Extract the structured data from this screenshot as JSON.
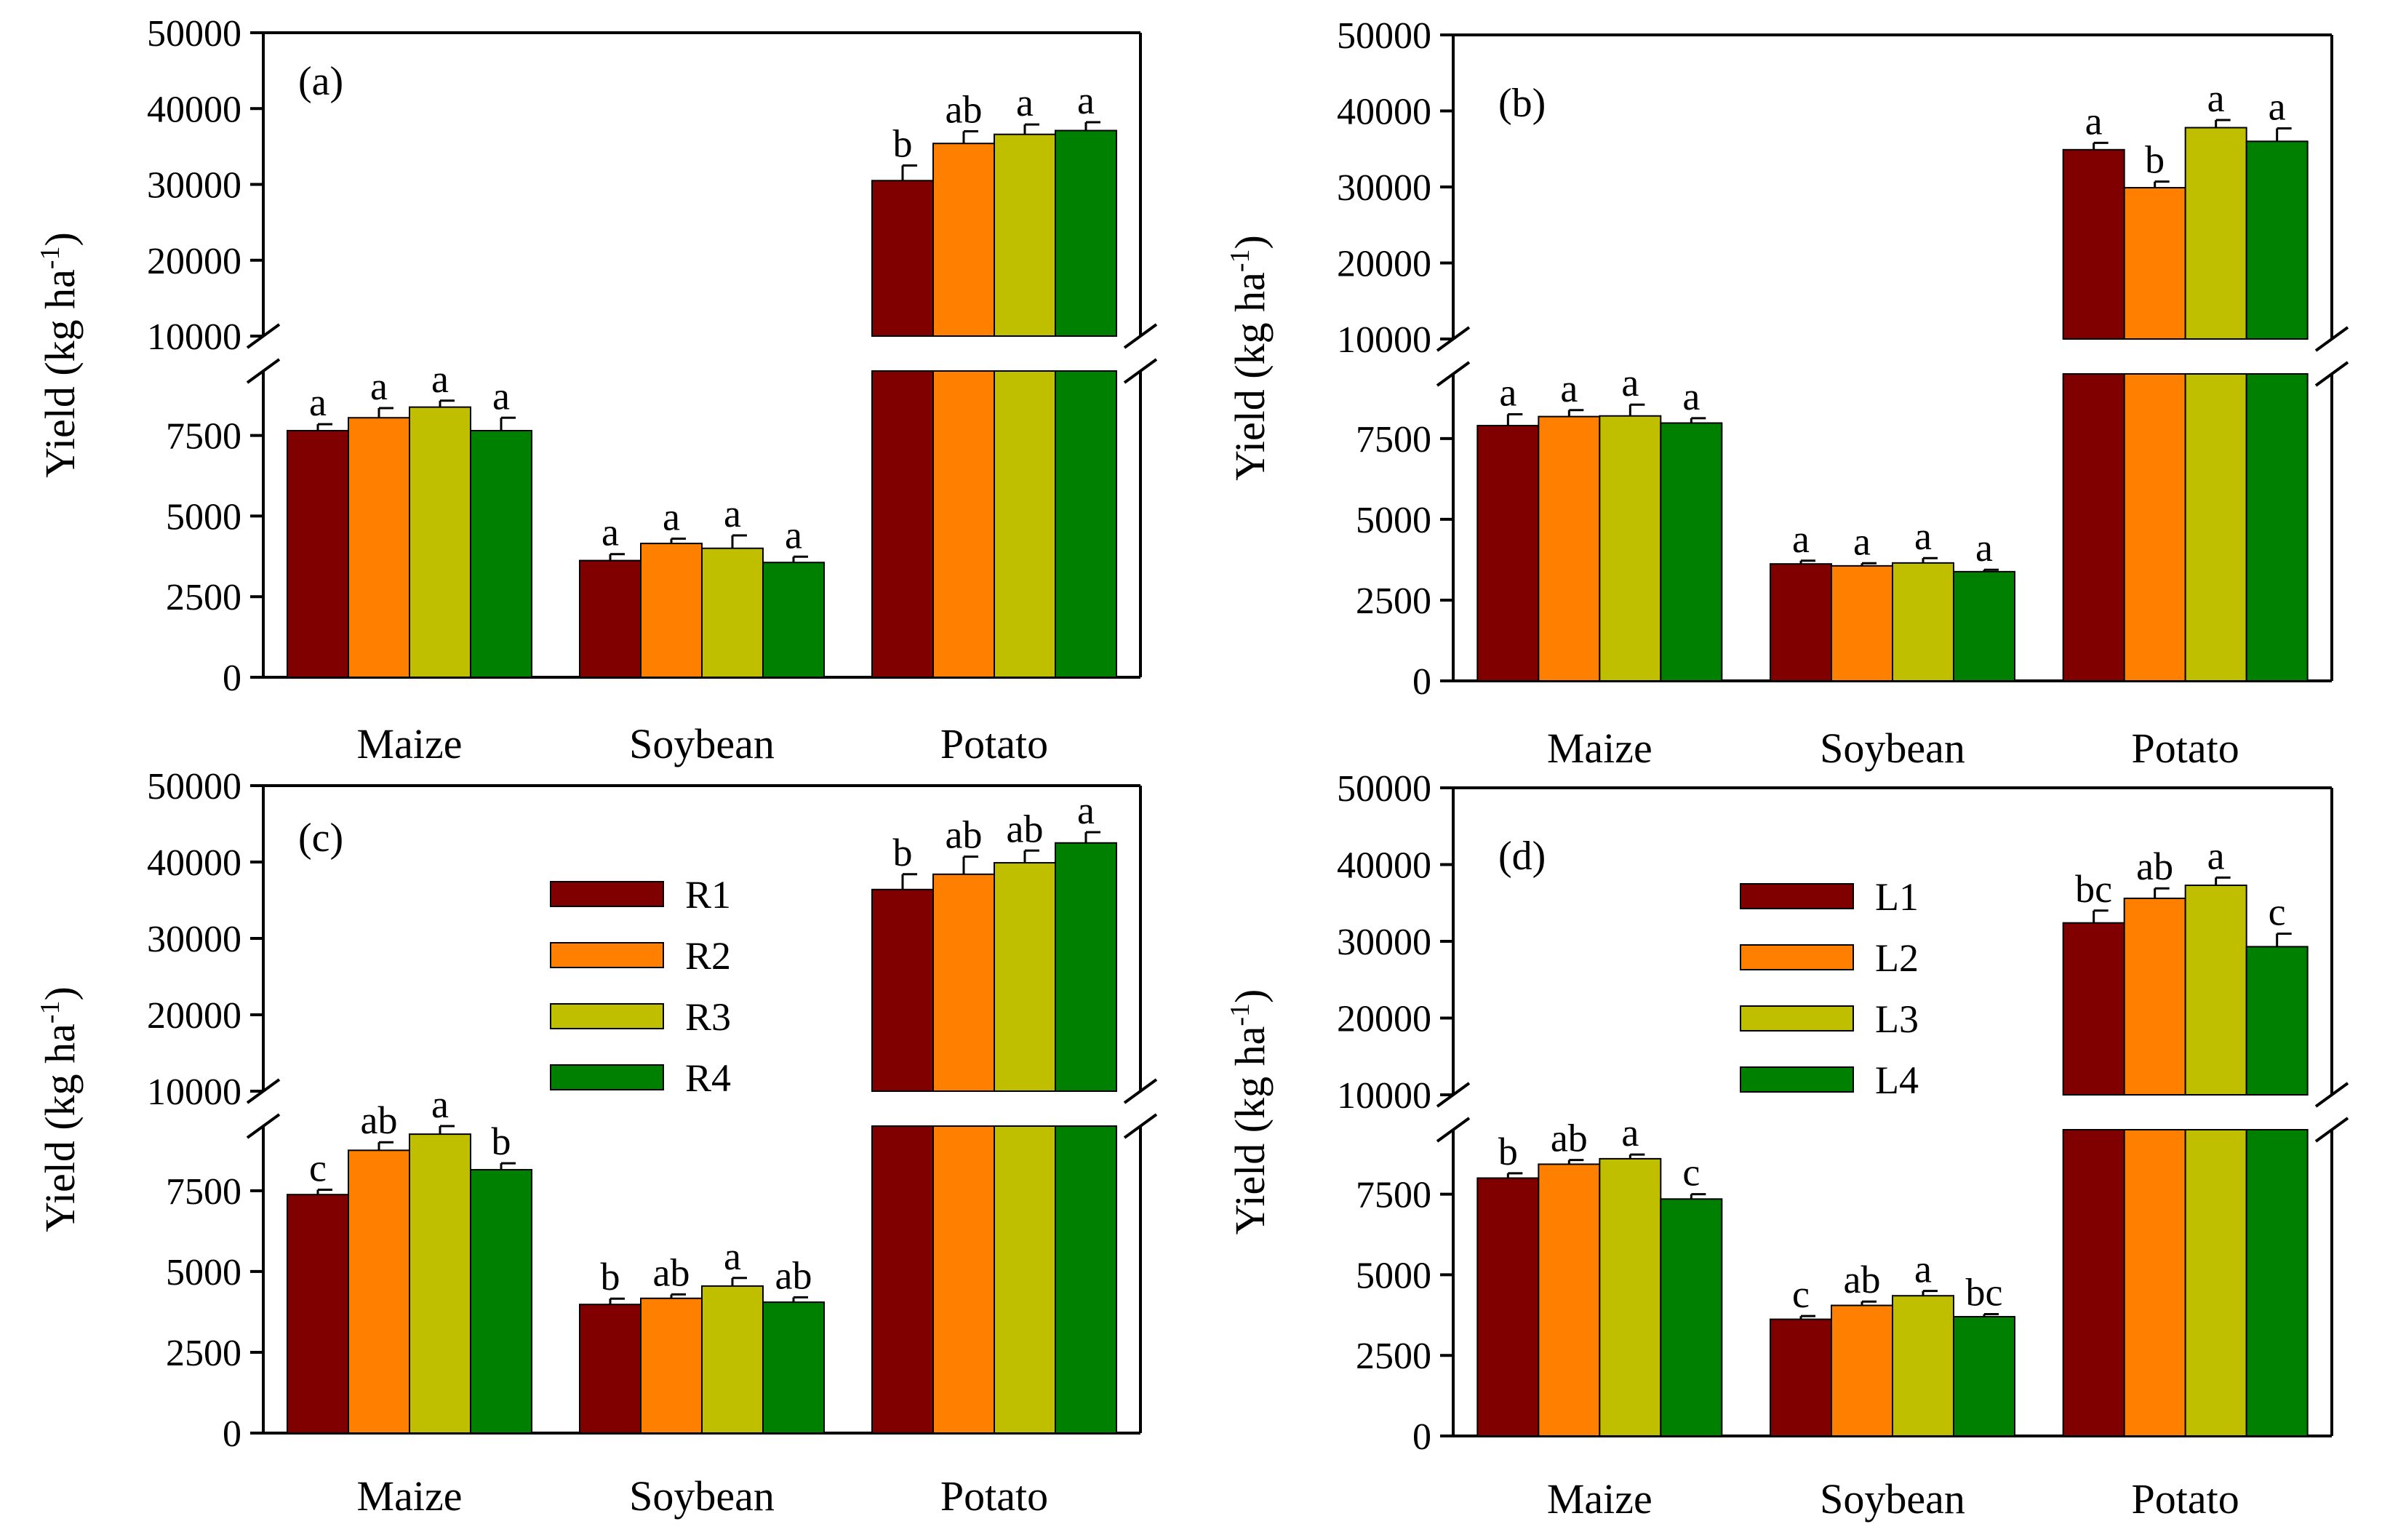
{
  "colors": {
    "series": [
      "#800000",
      "#FF8000",
      "#BFBF00",
      "#008000"
    ],
    "axis": "#000000",
    "background": "#FFFFFF"
  },
  "chart_data": [
    {
      "type": "bar",
      "panel_label": "(a)",
      "categories": [
        "Maize",
        "Soybean",
        "Potato"
      ],
      "ylabel": "Yield (kg ha",
      "ylabel_sup": "-1",
      "ylabel_end": ")",
      "axis_break": [
        9500,
        10000
      ],
      "lower_ylim": [
        0,
        9500
      ],
      "upper_ylim": [
        10000,
        50000
      ],
      "lower_ticks": [
        0,
        2500,
        5000,
        7500
      ],
      "upper_ticks": [
        10000,
        20000,
        30000,
        40000,
        50000
      ],
      "legend": null,
      "series": [
        {
          "values": [
            7650,
            3620,
            30500
          ],
          "errors": [
            200,
            200,
            2000
          ],
          "letters": [
            "a",
            "a",
            "b"
          ]
        },
        {
          "values": [
            8050,
            4150,
            35400
          ],
          "errors": [
            300,
            150,
            1600
          ],
          "letters": [
            "a",
            "a",
            "ab"
          ]
        },
        {
          "values": [
            8380,
            4000,
            36600
          ],
          "errors": [
            200,
            400,
            1300
          ],
          "letters": [
            "a",
            "a",
            "a"
          ]
        },
        {
          "values": [
            7650,
            3560,
            37100
          ],
          "errors": [
            400,
            180,
            1100
          ],
          "letters": [
            "a",
            "a",
            "a"
          ]
        }
      ]
    },
    {
      "type": "bar",
      "panel_label": "(b)",
      "categories": [
        "Maize",
        "Soybean",
        "Potato"
      ],
      "ylabel": "Yield (kg ha",
      "ylabel_sup": "-1",
      "ylabel_end": ")",
      "axis_break": [
        9500,
        10000
      ],
      "lower_ylim": [
        0,
        9500
      ],
      "upper_ylim": [
        10000,
        50000
      ],
      "lower_ticks": [
        0,
        2500,
        5000,
        7500
      ],
      "upper_ticks": [
        10000,
        20000,
        30000,
        40000,
        50000
      ],
      "legend": null,
      "series": [
        {
          "values": [
            7900,
            3620,
            34900
          ],
          "errors": [
            350,
            100,
            900
          ],
          "letters": [
            "a",
            "a",
            "a"
          ]
        },
        {
          "values": [
            8180,
            3560,
            29900
          ],
          "errors": [
            200,
            80,
            800
          ],
          "letters": [
            "a",
            "a",
            "b"
          ]
        },
        {
          "values": [
            8200,
            3650,
            37800
          ],
          "errors": [
            350,
            150,
            1000
          ],
          "letters": [
            "a",
            "a",
            "a"
          ]
        },
        {
          "values": [
            7980,
            3380,
            36000
          ],
          "errors": [
            150,
            60,
            1700
          ],
          "letters": [
            "a",
            "a",
            "a"
          ]
        }
      ]
    },
    {
      "type": "bar",
      "panel_label": "(c)",
      "categories": [
        "Maize",
        "Soybean",
        "Potato"
      ],
      "ylabel": "Yield (kg ha",
      "ylabel_sup": "-1",
      "ylabel_end": ")",
      "axis_break": [
        9500,
        10000
      ],
      "lower_ylim": [
        0,
        9500
      ],
      "upper_ylim": [
        10000,
        50000
      ],
      "lower_ticks": [
        0,
        2500,
        5000,
        7500
      ],
      "upper_ticks": [
        10000,
        20000,
        30000,
        40000,
        50000
      ],
      "legend": [
        "R1",
        "R2",
        "R3",
        "R4"
      ],
      "series": [
        {
          "values": [
            7380,
            3980,
            36400
          ],
          "errors": [
            150,
            180,
            2000
          ],
          "letters": [
            "c",
            "b",
            "b"
          ]
        },
        {
          "values": [
            8750,
            4170,
            38400
          ],
          "errors": [
            250,
            120,
            2300
          ],
          "letters": [
            "ab",
            "ab",
            "ab"
          ]
        },
        {
          "values": [
            9250,
            4550,
            39900
          ],
          "errors": [
            250,
            250,
            1600
          ],
          "letters": [
            "a",
            "a",
            "ab"
          ]
        },
        {
          "values": [
            8150,
            4050,
            42500
          ],
          "errors": [
            200,
            150,
            1400
          ],
          "letters": [
            "b",
            "ab",
            "a"
          ]
        }
      ]
    },
    {
      "type": "bar",
      "panel_label": "(d)",
      "categories": [
        "Maize",
        "Soybean",
        "Potato"
      ],
      "ylabel": "Yield (kg ha",
      "ylabel_sup": "-1",
      "ylabel_end": ")",
      "axis_break": [
        9500,
        10000
      ],
      "lower_ylim": [
        0,
        9500
      ],
      "upper_ylim": [
        10000,
        50000
      ],
      "lower_ticks": [
        0,
        2500,
        5000,
        7500
      ],
      "upper_ticks": [
        10000,
        20000,
        30000,
        40000,
        50000
      ],
      "legend": [
        "L1",
        "L2",
        "L3",
        "L4"
      ],
      "series": [
        {
          "values": [
            8000,
            3620,
            32400
          ],
          "errors": [
            150,
            100,
            1600
          ],
          "letters": [
            "b",
            "c",
            "bc"
          ]
        },
        {
          "values": [
            8430,
            4050,
            35600
          ],
          "errors": [
            130,
            120,
            1300
          ],
          "letters": [
            "ab",
            "ab",
            "ab"
          ]
        },
        {
          "values": [
            8600,
            4350,
            37300
          ],
          "errors": [
            130,
            150,
            1000
          ],
          "letters": [
            "a",
            "a",
            "a"
          ]
        },
        {
          "values": [
            7350,
            3700,
            29300
          ],
          "errors": [
            150,
            80,
            1700
          ],
          "letters": [
            "c",
            "bc",
            "c"
          ]
        }
      ]
    }
  ]
}
